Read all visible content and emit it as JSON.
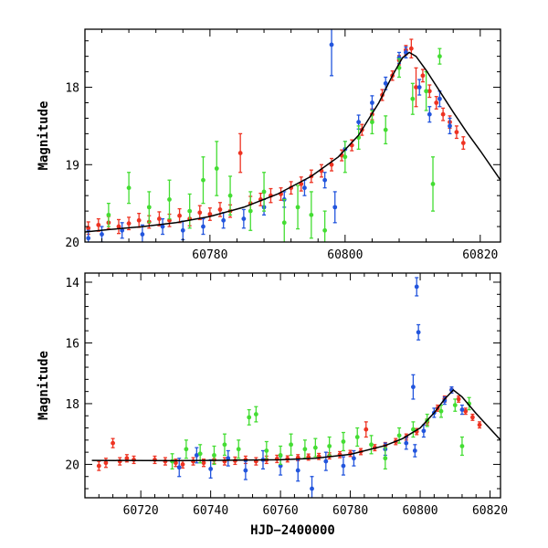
{
  "chart_data": [
    {
      "type": "scatter",
      "panel": "top",
      "title": "",
      "xlabel": "",
      "ylabel": "Magnitude",
      "xlim": [
        60761.5,
        60823
      ],
      "ylim": [
        20.0,
        17.25
      ],
      "y_inverted": true,
      "xticks": [
        60780,
        60800,
        60820
      ],
      "yticks": [
        18,
        19,
        20
      ],
      "grid": false,
      "legend": "none",
      "model_curve": {
        "color": "#000000",
        "points": [
          [
            60761.5,
            19.87
          ],
          [
            60765,
            19.84
          ],
          [
            60770,
            19.8
          ],
          [
            60775,
            19.75
          ],
          [
            60780,
            19.67
          ],
          [
            60785,
            19.55
          ],
          [
            60790,
            19.38
          ],
          [
            60795,
            19.15
          ],
          [
            60799,
            18.9
          ],
          [
            60802,
            18.62
          ],
          [
            60805,
            18.2
          ],
          [
            60807,
            17.85
          ],
          [
            60808.5,
            17.62
          ],
          [
            60809.5,
            17.55
          ],
          [
            60810.5,
            17.6
          ],
          [
            60812,
            17.78
          ],
          [
            60814,
            18.05
          ],
          [
            60816,
            18.32
          ],
          [
            60818,
            18.58
          ],
          [
            60820,
            18.82
          ],
          [
            60823,
            19.2
          ]
        ]
      },
      "series": [
        {
          "color": "#ee3322",
          "points": [
            [
              60762,
              19.82,
              0.08
            ],
            [
              60763.5,
              19.78,
              0.08
            ],
            [
              60765,
              19.75,
              0.08
            ],
            [
              60766.5,
              19.8,
              0.09
            ],
            [
              60768,
              19.76,
              0.08
            ],
            [
              60769.5,
              19.72,
              0.09
            ],
            [
              60771,
              19.74,
              0.08
            ],
            [
              60772.5,
              19.7,
              0.09
            ],
            [
              60774,
              19.72,
              0.08
            ],
            [
              60775.5,
              19.66,
              0.09
            ],
            [
              60777,
              19.7,
              0.09
            ],
            [
              60778.5,
              19.62,
              0.09
            ],
            [
              60780,
              19.64,
              0.08
            ],
            [
              60781.5,
              19.58,
              0.09
            ],
            [
              60783,
              19.6,
              0.08
            ],
            [
              60784.5,
              18.85,
              0.25
            ],
            [
              60786,
              19.5,
              0.09
            ],
            [
              60787.5,
              19.45,
              0.08
            ],
            [
              60789,
              19.4,
              0.09
            ],
            [
              60790.5,
              19.38,
              0.08
            ],
            [
              60792,
              19.3,
              0.08
            ],
            [
              60793.5,
              19.25,
              0.09
            ],
            [
              60795,
              19.15,
              0.08
            ],
            [
              60796.5,
              19.08,
              0.08
            ],
            [
              60798,
              19.0,
              0.08
            ],
            [
              60799.5,
              18.88,
              0.07
            ],
            [
              60801,
              18.75,
              0.07
            ],
            [
              60802.5,
              18.55,
              0.07
            ],
            [
              60804,
              18.35,
              0.07
            ],
            [
              60805.5,
              18.1,
              0.07
            ],
            [
              60807,
              17.85,
              0.06
            ],
            [
              60808,
              17.65,
              0.06
            ],
            [
              60809,
              17.52,
              0.06
            ],
            [
              60809.8,
              17.5,
              0.12
            ],
            [
              60810.5,
              18.0,
              0.25
            ],
            [
              60811.5,
              17.85,
              0.08
            ],
            [
              60812.5,
              18.05,
              0.08
            ],
            [
              60813.5,
              18.2,
              0.08
            ],
            [
              60814.5,
              18.35,
              0.08
            ],
            [
              60815.5,
              18.45,
              0.08
            ],
            [
              60816.5,
              18.58,
              0.08
            ],
            [
              60817.5,
              18.72,
              0.08
            ]
          ]
        },
        {
          "color": "#2255dd",
          "points": [
            [
              60762,
              19.95,
              0.1
            ],
            [
              60764,
              19.9,
              0.1
            ],
            [
              60767,
              19.85,
              0.1
            ],
            [
              60770,
              19.9,
              0.12
            ],
            [
              60773,
              19.8,
              0.1
            ],
            [
              60776,
              19.85,
              0.12
            ],
            [
              60779,
              19.8,
              0.1
            ],
            [
              60782,
              19.72,
              0.1
            ],
            [
              60785,
              19.7,
              0.12
            ],
            [
              60788,
              19.55,
              0.1
            ],
            [
              60791,
              19.45,
              0.1
            ],
            [
              60794,
              19.3,
              0.1
            ],
            [
              60797,
              19.2,
              0.1
            ],
            [
              60798,
              17.45,
              0.4
            ],
            [
              60798.5,
              19.55,
              0.2
            ],
            [
              60800,
              18.8,
              0.1
            ],
            [
              60802,
              18.45,
              0.09
            ],
            [
              60804,
              18.2,
              0.09
            ],
            [
              60806,
              17.95,
              0.08
            ],
            [
              60808,
              17.62,
              0.07
            ],
            [
              60809,
              17.55,
              0.07
            ],
            [
              60811,
              18.0,
              0.1
            ],
            [
              60812.5,
              18.35,
              0.1
            ],
            [
              60814,
              18.15,
              0.1
            ],
            [
              60815.5,
              18.5,
              0.1
            ]
          ]
        },
        {
          "color": "#44dd33",
          "points": [
            [
              60765,
              19.65,
              0.15
            ],
            [
              60768,
              19.3,
              0.2
            ],
            [
              60771,
              19.55,
              0.2
            ],
            [
              60774,
              19.45,
              0.25
            ],
            [
              60777,
              19.6,
              0.22
            ],
            [
              60779,
              19.2,
              0.3
            ],
            [
              60781,
              19.05,
              0.35
            ],
            [
              60783,
              19.4,
              0.25
            ],
            [
              60786,
              19.6,
              0.25
            ],
            [
              60788,
              19.35,
              0.25
            ],
            [
              60791,
              19.75,
              0.3
            ],
            [
              60793,
              19.55,
              0.28
            ],
            [
              60795,
              19.65,
              0.3
            ],
            [
              60797,
              19.85,
              0.25
            ],
            [
              60800,
              18.9,
              0.2
            ],
            [
              60802,
              18.65,
              0.15
            ],
            [
              60804,
              18.45,
              0.15
            ],
            [
              60806,
              18.55,
              0.18
            ],
            [
              60808,
              17.75,
              0.12
            ],
            [
              60810,
              18.15,
              0.2
            ],
            [
              60812,
              18.05,
              0.25
            ],
            [
              60813,
              19.25,
              0.35
            ],
            [
              60814,
              17.6,
              0.1
            ]
          ]
        }
      ]
    },
    {
      "type": "scatter",
      "panel": "bottom",
      "title": "",
      "xlabel": "HJD−2400000",
      "ylabel": "Magnitude",
      "xlim": [
        60704,
        60823
      ],
      "ylim": [
        21.1,
        13.7
      ],
      "y_inverted": true,
      "xticks": [
        60720,
        60740,
        60760,
        60780,
        60800,
        60820
      ],
      "yticks": [
        14,
        16,
        18,
        20
      ],
      "grid": false,
      "legend": "none",
      "model_curve": {
        "color": "#000000",
        "points": [
          [
            60706,
            19.87
          ],
          [
            60730,
            19.88
          ],
          [
            60760,
            19.85
          ],
          [
            60770,
            19.8
          ],
          [
            60780,
            19.67
          ],
          [
            60790,
            19.38
          ],
          [
            60795,
            19.15
          ],
          [
            60800,
            18.8
          ],
          [
            60804,
            18.3
          ],
          [
            60807,
            17.85
          ],
          [
            60809.5,
            17.55
          ],
          [
            60812,
            17.78
          ],
          [
            60816,
            18.32
          ],
          [
            60820,
            18.82
          ],
          [
            60823,
            19.2
          ]
        ]
      },
      "series": [
        {
          "color": "#ee3322",
          "points": [
            [
              60708,
              20.05,
              0.15
            ],
            [
              60710,
              19.95,
              0.15
            ],
            [
              60712,
              19.3,
              0.15
            ],
            [
              60714,
              19.9,
              0.12
            ],
            [
              60716,
              19.8,
              0.12
            ],
            [
              60718,
              19.85,
              0.12
            ],
            [
              60724,
              19.85,
              0.12
            ],
            [
              60727,
              19.9,
              0.12
            ],
            [
              60730,
              19.95,
              0.12
            ],
            [
              60732,
              20.0,
              0.12
            ],
            [
              60735,
              19.9,
              0.12
            ],
            [
              60738,
              19.95,
              0.12
            ],
            [
              60741,
              19.85,
              0.12
            ],
            [
              60744,
              19.9,
              0.12
            ],
            [
              60747,
              19.88,
              0.12
            ],
            [
              60750,
              19.85,
              0.12
            ],
            [
              60753,
              19.9,
              0.12
            ],
            [
              60756,
              19.85,
              0.12
            ],
            [
              60759,
              19.82,
              0.12
            ],
            [
              60762,
              19.82,
              0.1
            ],
            [
              60765,
              19.78,
              0.1
            ],
            [
              60768,
              19.76,
              0.1
            ],
            [
              60771,
              19.74,
              0.1
            ],
            [
              60774,
              19.72,
              0.1
            ],
            [
              60777,
              19.68,
              0.1
            ],
            [
              60780,
              19.64,
              0.1
            ],
            [
              60783,
              19.58,
              0.1
            ],
            [
              60784.5,
              18.85,
              0.25
            ],
            [
              60787,
              19.45,
              0.1
            ],
            [
              60790,
              19.38,
              0.1
            ],
            [
              60793,
              19.25,
              0.1
            ],
            [
              60796,
              19.1,
              0.1
            ],
            [
              60799,
              18.92,
              0.1
            ],
            [
              60802,
              18.6,
              0.1
            ],
            [
              60805,
              18.15,
              0.1
            ],
            [
              60807,
              17.85,
              0.1
            ],
            [
              60809,
              17.55,
              0.1
            ],
            [
              60811,
              17.85,
              0.1
            ],
            [
              60813,
              18.25,
              0.1
            ],
            [
              60815,
              18.45,
              0.1
            ],
            [
              60817,
              18.7,
              0.1
            ]
          ]
        },
        {
          "color": "#2255dd",
          "points": [
            [
              60731,
              20.1,
              0.3
            ],
            [
              60736,
              19.7,
              0.25
            ],
            [
              60740,
              20.15,
              0.3
            ],
            [
              60745,
              19.8,
              0.25
            ],
            [
              60750,
              20.2,
              0.3
            ],
            [
              60755,
              19.85,
              0.3
            ],
            [
              60760,
              20.05,
              0.3
            ],
            [
              60765,
              20.2,
              0.35
            ],
            [
              60769,
              20.8,
              0.4
            ],
            [
              60773,
              19.9,
              0.3
            ],
            [
              60778,
              20.05,
              0.3
            ],
            [
              60781,
              19.8,
              0.25
            ],
            [
              60790,
              19.5,
              0.2
            ],
            [
              60796,
              19.3,
              0.2
            ],
            [
              60798,
              17.45,
              0.4
            ],
            [
              60798.5,
              19.55,
              0.2
            ],
            [
              60799,
              14.15,
              0.3
            ],
            [
              60799.5,
              15.65,
              0.25
            ],
            [
              60801,
              18.9,
              0.2
            ],
            [
              60804,
              18.3,
              0.15
            ],
            [
              60807,
              17.9,
              0.12
            ],
            [
              60809,
              17.55,
              0.1
            ],
            [
              60812,
              18.2,
              0.15
            ]
          ]
        },
        {
          "color": "#44dd33",
          "points": [
            [
              60729,
              19.9,
              0.25
            ],
            [
              60733,
              19.5,
              0.3
            ],
            [
              60737,
              19.65,
              0.3
            ],
            [
              60741,
              19.7,
              0.3
            ],
            [
              60744,
              19.35,
              0.35
            ],
            [
              60748,
              19.5,
              0.3
            ],
            [
              60751,
              18.45,
              0.25
            ],
            [
              60753,
              18.35,
              0.25
            ],
            [
              60756,
              19.55,
              0.3
            ],
            [
              60760,
              19.7,
              0.3
            ],
            [
              60763,
              19.35,
              0.35
            ],
            [
              60767,
              19.5,
              0.3
            ],
            [
              60770,
              19.45,
              0.3
            ],
            [
              60774,
              19.4,
              0.3
            ],
            [
              60778,
              19.25,
              0.3
            ],
            [
              60782,
              19.1,
              0.3
            ],
            [
              60786,
              19.35,
              0.3
            ],
            [
              60790,
              19.8,
              0.35
            ],
            [
              60794,
              19.05,
              0.25
            ],
            [
              60798,
              18.85,
              0.25
            ],
            [
              60802,
              18.55,
              0.2
            ],
            [
              60806,
              18.25,
              0.2
            ],
            [
              60810,
              18.05,
              0.2
            ],
            [
              60812,
              19.4,
              0.3
            ],
            [
              60814,
              18.0,
              0.2
            ]
          ]
        }
      ]
    }
  ]
}
